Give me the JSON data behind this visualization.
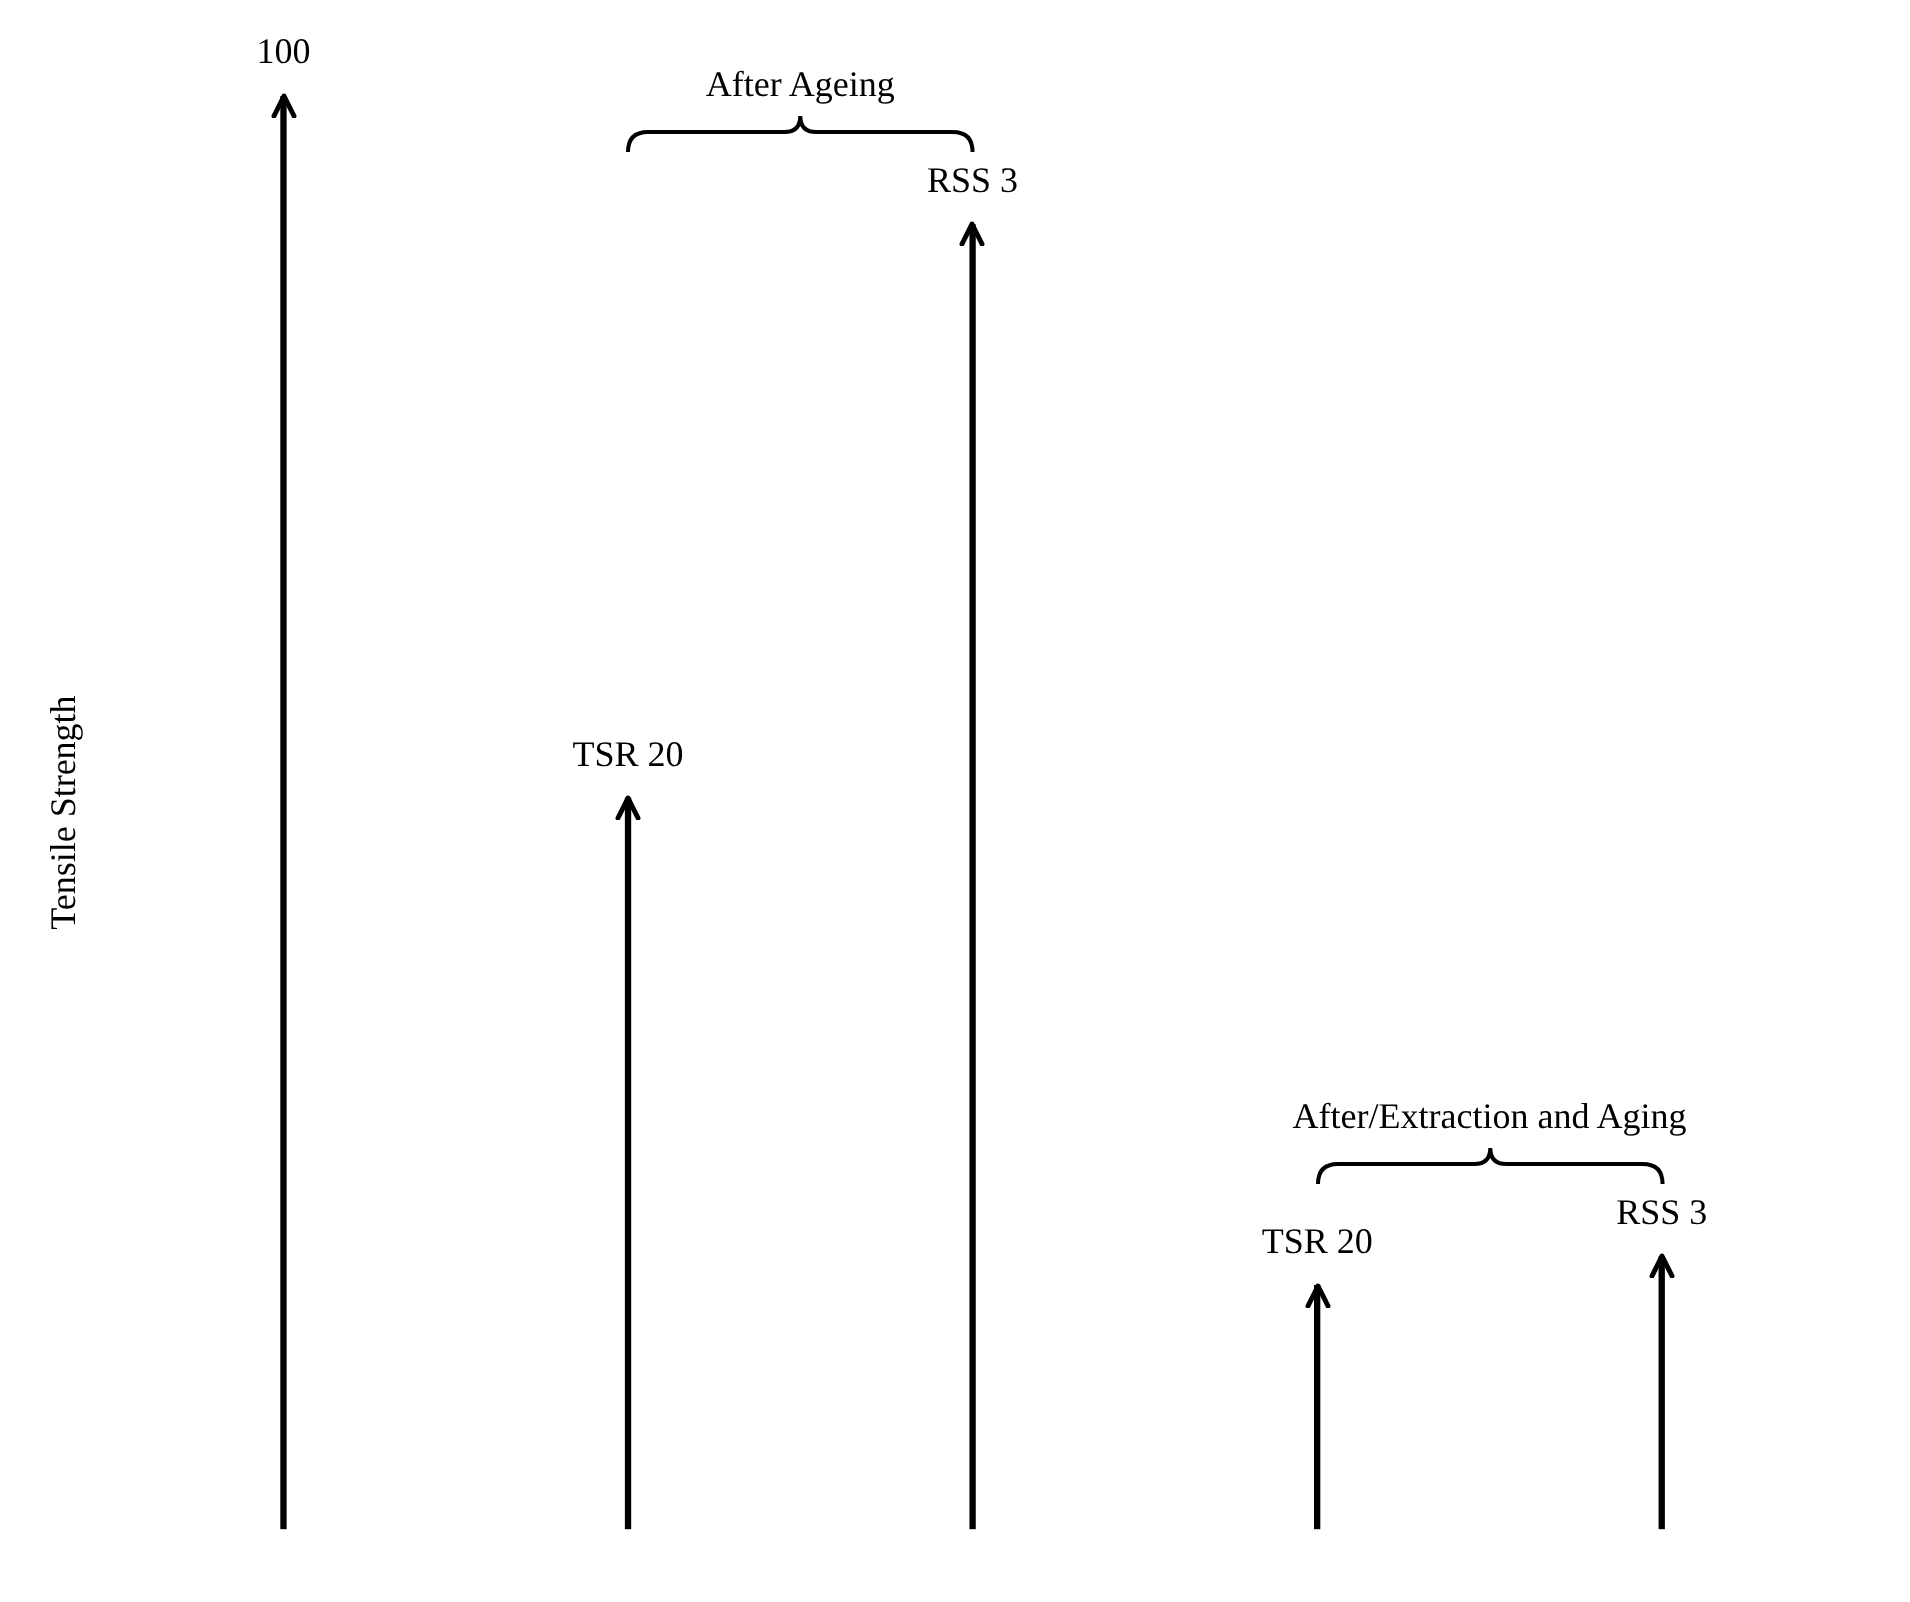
{
  "chart_data": {
    "type": "bar",
    "ylabel": "Tensile Strength",
    "categories": [
      null,
      null,
      null,
      null,
      null
    ],
    "values": [
      100,
      51,
      91,
      17,
      19
    ],
    "value_labels": [
      "100",
      null,
      null,
      null,
      null
    ],
    "color": "#000000",
    "annotations": [
      "After Ageing",
      "After/Extraction and Aging",
      {
        "text": "TSR 20",
        "y": 51
      },
      {
        "text": "RSS 3",
        "y": 91
      },
      {
        "text": "TSR 20",
        "y": 17
      },
      {
        "text": "RSS 3",
        "y": 19
      }
    ],
    "ylim": [
      0,
      100
    ],
    "grid": false,
    "legend": false
  }
}
